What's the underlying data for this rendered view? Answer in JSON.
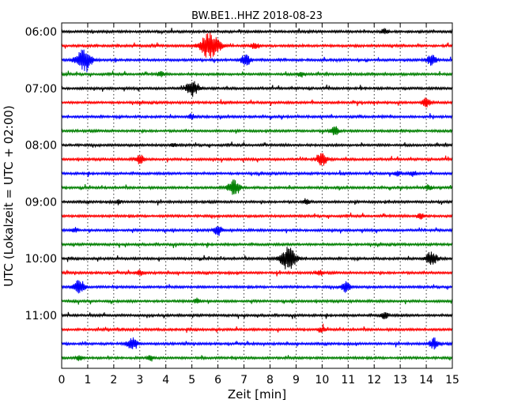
{
  "chart_data": {
    "type": "line",
    "title": "BW.BE1..HHZ 2018-08-23",
    "xlabel": "Zeit  [min]",
    "ylabel": "UTC (Lokalzeit = UTC + 02:00)",
    "xlim": [
      0,
      15
    ],
    "x_ticks": [
      "0",
      "1",
      "2",
      "3",
      "4",
      "5",
      "6",
      "7",
      "8",
      "9",
      "10",
      "11",
      "12",
      "13",
      "14",
      "15"
    ],
    "y_ticks": [
      "06:00",
      "07:00",
      "08:00",
      "09:00",
      "10:00",
      "11:00"
    ],
    "grid": "vertical dotted",
    "trace_interval_min": 15,
    "colors": [
      "#000000",
      "#ff0000",
      "#0000ff",
      "#008000"
    ],
    "series": [
      {
        "start": "06:00",
        "events": [
          [
            12.4,
            0.3
          ]
        ]
      },
      {
        "start": "06:15",
        "events": [
          [
            5.7,
            1.6
          ],
          [
            7.4,
            0.4
          ]
        ]
      },
      {
        "start": "06:30",
        "events": [
          [
            0.85,
            1.3
          ],
          [
            7.05,
            0.6
          ],
          [
            14.2,
            0.6
          ]
        ]
      },
      {
        "start": "06:45",
        "events": [
          [
            3.8,
            0.3
          ],
          [
            9.2,
            0.3
          ]
        ]
      },
      {
        "start": "07:00",
        "events": [
          [
            5.0,
            0.9
          ]
        ]
      },
      {
        "start": "07:15",
        "events": [
          [
            14.0,
            0.5
          ]
        ]
      },
      {
        "start": "07:30",
        "events": [
          [
            5.0,
            0.3
          ]
        ]
      },
      {
        "start": "07:45",
        "events": [
          [
            10.5,
            0.5
          ]
        ]
      },
      {
        "start": "08:00",
        "events": [
          [
            4.3,
            0.2
          ]
        ]
      },
      {
        "start": "08:15",
        "events": [
          [
            3.0,
            0.5
          ],
          [
            10.0,
            0.7
          ]
        ]
      },
      {
        "start": "08:30",
        "events": [
          [
            12.9,
            0.3
          ],
          [
            13.5,
            0.3
          ]
        ]
      },
      {
        "start": "08:45",
        "events": [
          [
            6.6,
            0.9
          ],
          [
            14.1,
            0.3
          ]
        ]
      },
      {
        "start": "09:00",
        "events": [
          [
            2.2,
            0.2
          ],
          [
            9.4,
            0.3
          ]
        ]
      },
      {
        "start": "09:15",
        "events": [
          [
            13.8,
            0.4
          ]
        ]
      },
      {
        "start": "09:30",
        "events": [
          [
            0.5,
            0.3
          ],
          [
            6.0,
            0.5
          ]
        ]
      },
      {
        "start": "09:45",
        "events": []
      },
      {
        "start": "10:00",
        "events": [
          [
            8.7,
            1.3
          ],
          [
            14.2,
            0.8
          ]
        ]
      },
      {
        "start": "10:15",
        "events": [
          [
            3.0,
            0.3
          ],
          [
            9.9,
            0.3
          ]
        ]
      },
      {
        "start": "10:30",
        "events": [
          [
            0.65,
            0.8
          ],
          [
            10.9,
            0.6
          ]
        ]
      },
      {
        "start": "10:45",
        "events": [
          [
            5.2,
            0.3
          ]
        ]
      },
      {
        "start": "11:00",
        "events": [
          [
            12.4,
            0.4
          ]
        ]
      },
      {
        "start": "11:15",
        "events": [
          [
            10.0,
            0.3
          ]
        ]
      },
      {
        "start": "11:30",
        "events": [
          [
            2.7,
            0.7
          ],
          [
            14.3,
            0.6
          ]
        ]
      },
      {
        "start": "11:45",
        "events": [
          [
            0.7,
            0.3
          ],
          [
            3.4,
            0.3
          ]
        ]
      }
    ]
  }
}
